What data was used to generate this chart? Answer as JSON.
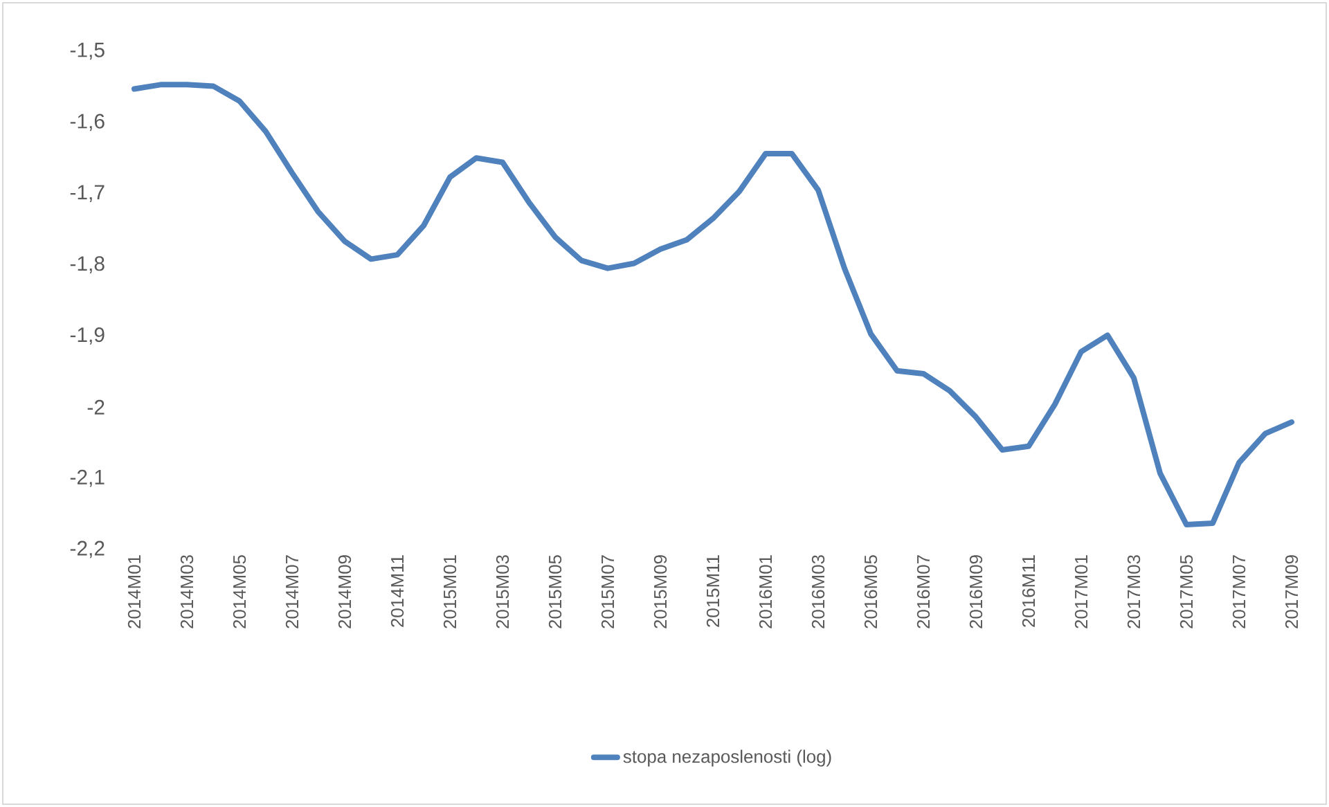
{
  "chart_data": {
    "type": "line",
    "categories": [
      "2014M01",
      null,
      "2014M03",
      null,
      "2014M05",
      null,
      "2014M07",
      null,
      "2014M09",
      null,
      "2014M11",
      null,
      "2015M01",
      null,
      "2015M03",
      null,
      "2015M05",
      null,
      "2015M07",
      null,
      "2015M09",
      null,
      "2015M11",
      null,
      "2016M01",
      null,
      "2016M03",
      null,
      "2016M05",
      null,
      "2016M07",
      null,
      "2016M09",
      null,
      "2016M11",
      null,
      "2017M01",
      null,
      "2017M03",
      null,
      "2017M05",
      null,
      "2017M07",
      null,
      "2017M09"
    ],
    "series": [
      {
        "name": "stopa nezaposlenosti (log)",
        "color": "#4f81bd",
        "values": [
          -1.553,
          -1.547,
          -1.547,
          -1.549,
          -1.57,
          -1.613,
          -1.671,
          -1.726,
          -1.767,
          -1.792,
          -1.786,
          -1.745,
          -1.677,
          -1.65,
          -1.656,
          -1.712,
          -1.761,
          -1.794,
          -1.805,
          -1.798,
          -1.778,
          -1.765,
          -1.735,
          -1.697,
          -1.644,
          -1.644,
          -1.695,
          -1.805,
          -1.897,
          -1.949,
          -1.953,
          -1.977,
          -2.014,
          -2.06,
          -2.055,
          -1.996,
          -1.922,
          -1.899,
          -1.959,
          -2.093,
          -2.165,
          -2.163,
          -2.078,
          -2.037,
          -2.021
        ]
      }
    ],
    "ylim": [
      -2.2,
      -1.5
    ],
    "yticks": [
      {
        "value": -2.2,
        "label": "-2,2"
      },
      {
        "value": -2.1,
        "label": "-2,1"
      },
      -2,
      {
        "value": -1.9,
        "label": "-1,9"
      },
      {
        "value": -1.8,
        "label": "-1,8"
      },
      {
        "value": -1.7,
        "label": "-1,7"
      },
      {
        "value": -1.6,
        "label": "-1,6"
      },
      {
        "value": -1.5,
        "label": "-1,5"
      }
    ],
    "legend": "bottom",
    "marker": "none",
    "line_style": "solid"
  }
}
